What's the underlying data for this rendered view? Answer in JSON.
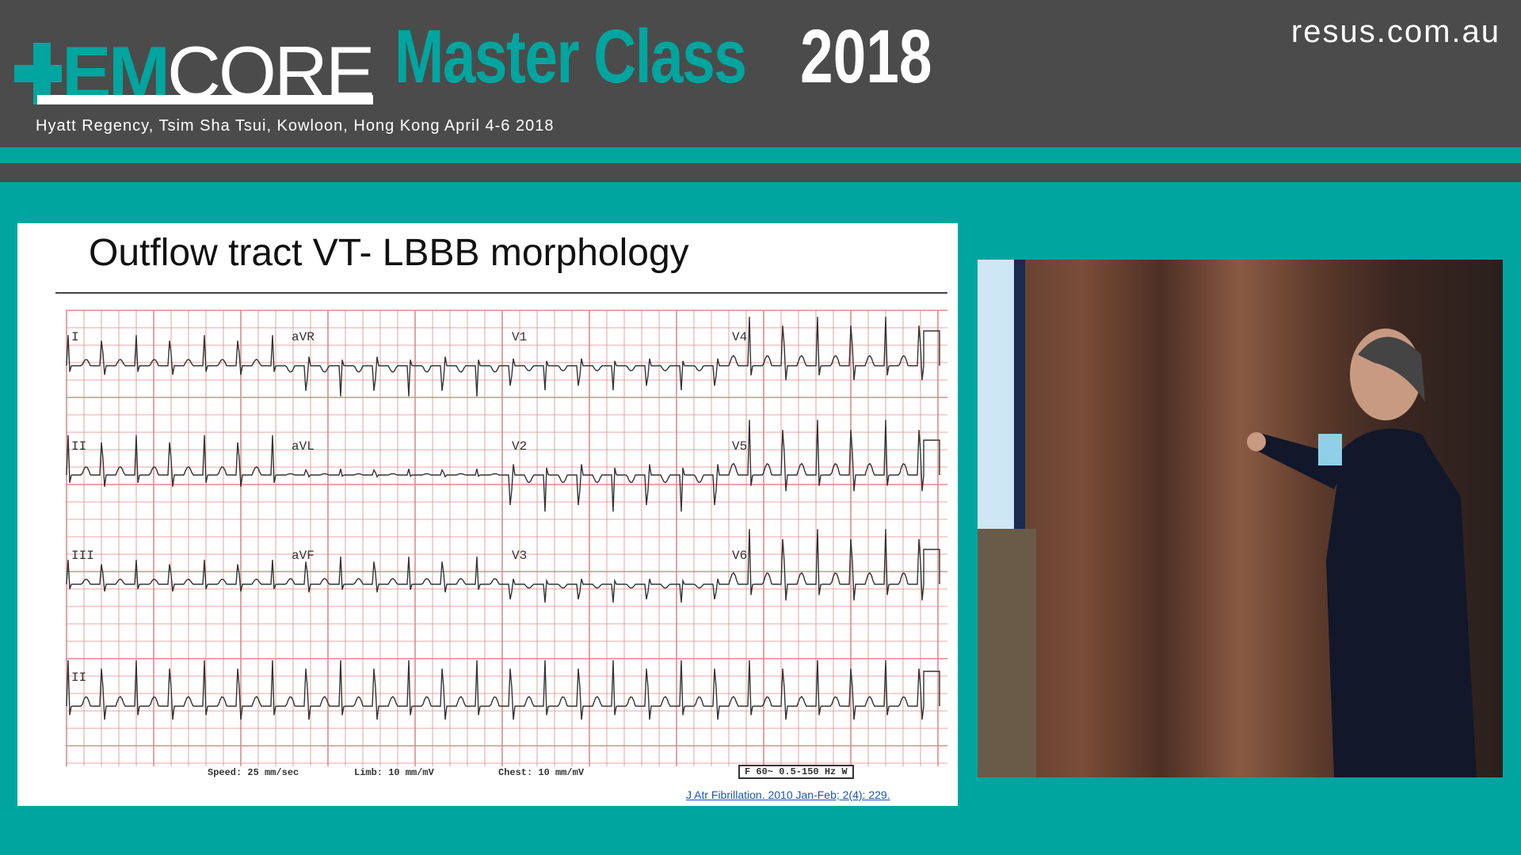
{
  "header": {
    "logo_em": "EM",
    "logo_core": "CORE",
    "event_title": "Master Class",
    "event_year": "2018",
    "venue": "Hyatt Regency, Tsim Sha Tsui, Kowloon, Hong Kong April 4-6 2018",
    "website": "resus.com.au"
  },
  "colors": {
    "brand_teal": "#00a59f",
    "header_gray": "#4b4b4b",
    "ecg_grid": "#e08a8a"
  },
  "slide": {
    "title": "Outflow tract VT- LBBB morphology",
    "ecg": {
      "leads": [
        [
          "I",
          "aVR",
          "V1",
          "V4"
        ],
        [
          "II",
          "aVL",
          "V2",
          "V5"
        ],
        [
          "III",
          "aVF",
          "V3",
          "V6"
        ],
        [
          "II"
        ]
      ],
      "speed": "Speed: 25 mm/sec",
      "limb": "Limb: 10 mm/mV",
      "chest": "Chest: 10 mm/mV",
      "filter": "F 60~ 0.5-150 Hz W"
    },
    "reference": "J Atr Fibrillation. 2010 Jan-Feb; 2(4): 229."
  },
  "video": {
    "icon": "speaker-video-feed"
  }
}
